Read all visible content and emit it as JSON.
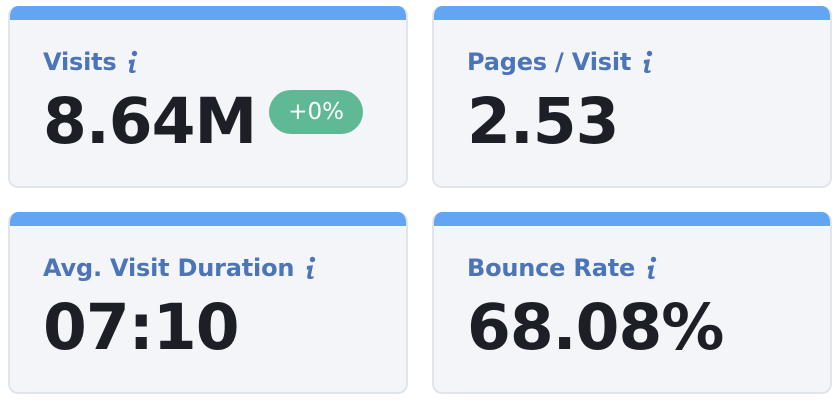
{
  "metrics": [
    {
      "label": "Visits",
      "value": "8.64M",
      "change": "+0%",
      "info_icon": "info-icon"
    },
    {
      "label": "Pages / Visit",
      "value": "2.53",
      "info_icon": "info-icon"
    },
    {
      "label": "Avg. Visit Duration",
      "value": "07:10",
      "info_icon": "info-icon"
    },
    {
      "label": "Bounce Rate",
      "value": "68.08%",
      "info_icon": "info-icon"
    }
  ],
  "colors": {
    "accent_bar": "#62a6f3",
    "label": "#4b74b9",
    "value": "#1c1f26",
    "card_background": "#f3f5f9",
    "card_border": "#e1e4ea",
    "badge_background": "#5fb995",
    "badge_text": "#ffffff"
  }
}
